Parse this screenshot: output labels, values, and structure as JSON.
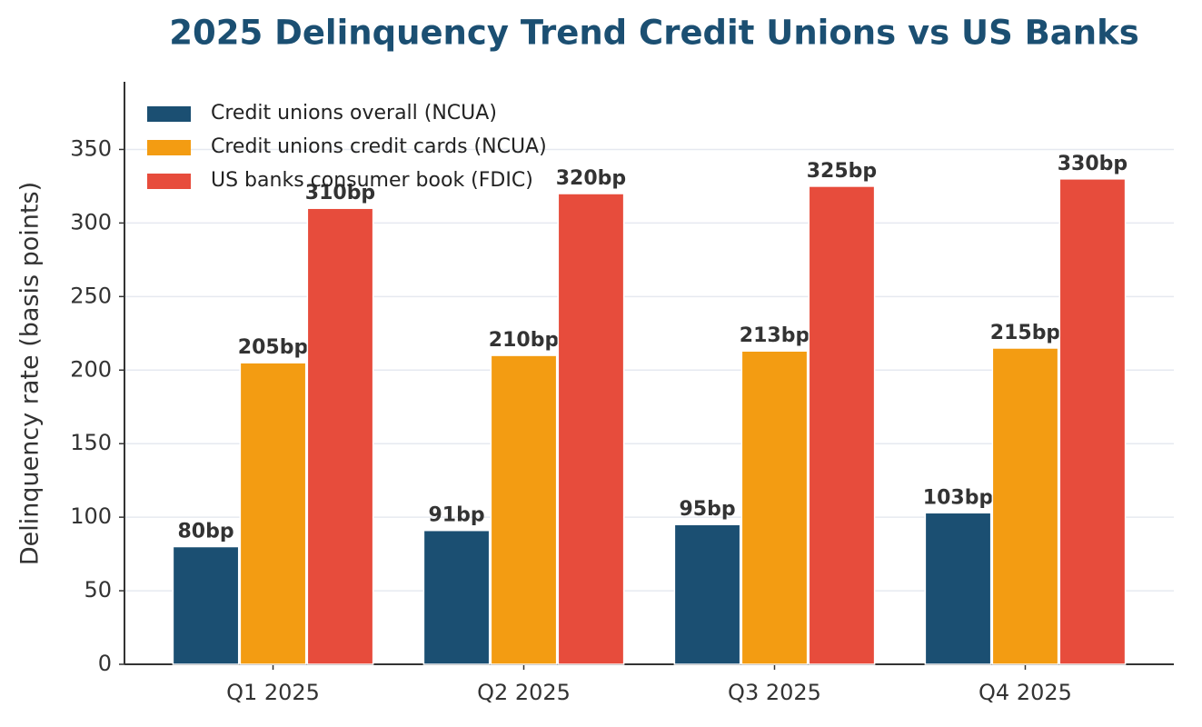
{
  "chart_data": {
    "type": "bar",
    "title": "2025 Delinquency Trend  Credit Unions vs US Banks",
    "y_label": "Delinquency rate (basis points)",
    "categories": [
      "Q1 2025",
      "Q2 2025",
      "Q3 2025",
      "Q4 2025"
    ],
    "series": [
      {
        "name": "Credit unions  overall (NCUA)",
        "color": "#1b4f72",
        "values": [
          80,
          91,
          95,
          103
        ],
        "value_labels": [
          "80bp",
          "91bp",
          "95bp",
          "103bp"
        ]
      },
      {
        "name": "Credit unions  credit cards (NCUA)",
        "color": "#f39c12",
        "values": [
          205,
          210,
          213,
          215
        ],
        "value_labels": [
          "205bp",
          "210bp",
          "213bp",
          "215bp"
        ]
      },
      {
        "name": "US banks  consumer book (FDIC)",
        "color": "#e74c3c",
        "values": [
          310,
          320,
          325,
          330
        ],
        "value_labels": [
          "310bp",
          "320bp",
          "325bp",
          "330bp"
        ]
      }
    ],
    "ylim": [
      0,
      396
    ],
    "yticks": [
      0,
      50,
      100,
      150,
      200,
      250,
      300,
      350
    ],
    "grid": true,
    "legend": "upper left"
  }
}
